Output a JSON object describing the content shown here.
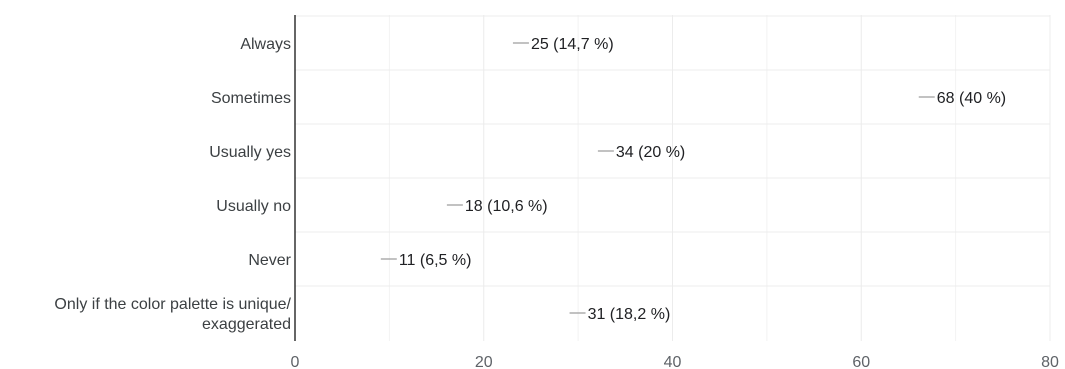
{
  "chart_data": {
    "type": "bar",
    "orientation": "horizontal",
    "title": "",
    "xlabel": "",
    "ylabel": "",
    "categories": [
      "Always",
      "Sometimes",
      "Usually yes",
      "Usually no",
      "Never",
      "Only if the color palette is unique/ exaggerated"
    ],
    "category_lines": [
      [
        "Always"
      ],
      [
        "Sometimes"
      ],
      [
        "Usually yes"
      ],
      [
        "Usually no"
      ],
      [
        "Never"
      ],
      [
        "Only if the color palette is unique/",
        "exaggerated"
      ]
    ],
    "values": [
      25,
      68,
      34,
      18,
      11,
      31
    ],
    "data_labels": [
      "25 (14,7 %)",
      "68 (40 %)",
      "34 (20 %)",
      "18 (10,6 %)",
      "11 (6,5 %)",
      "31 (18,2 %)"
    ],
    "xlim": [
      0,
      80
    ],
    "xticks": [
      0,
      20,
      40,
      60,
      80
    ],
    "xtick_labels": [
      "0",
      "20",
      "40",
      "60",
      "80"
    ],
    "grid": true,
    "colors": {
      "grid": "#ececec",
      "axis": "#333333",
      "leader": "#9e9e9e",
      "text": "#3c4043"
    }
  }
}
